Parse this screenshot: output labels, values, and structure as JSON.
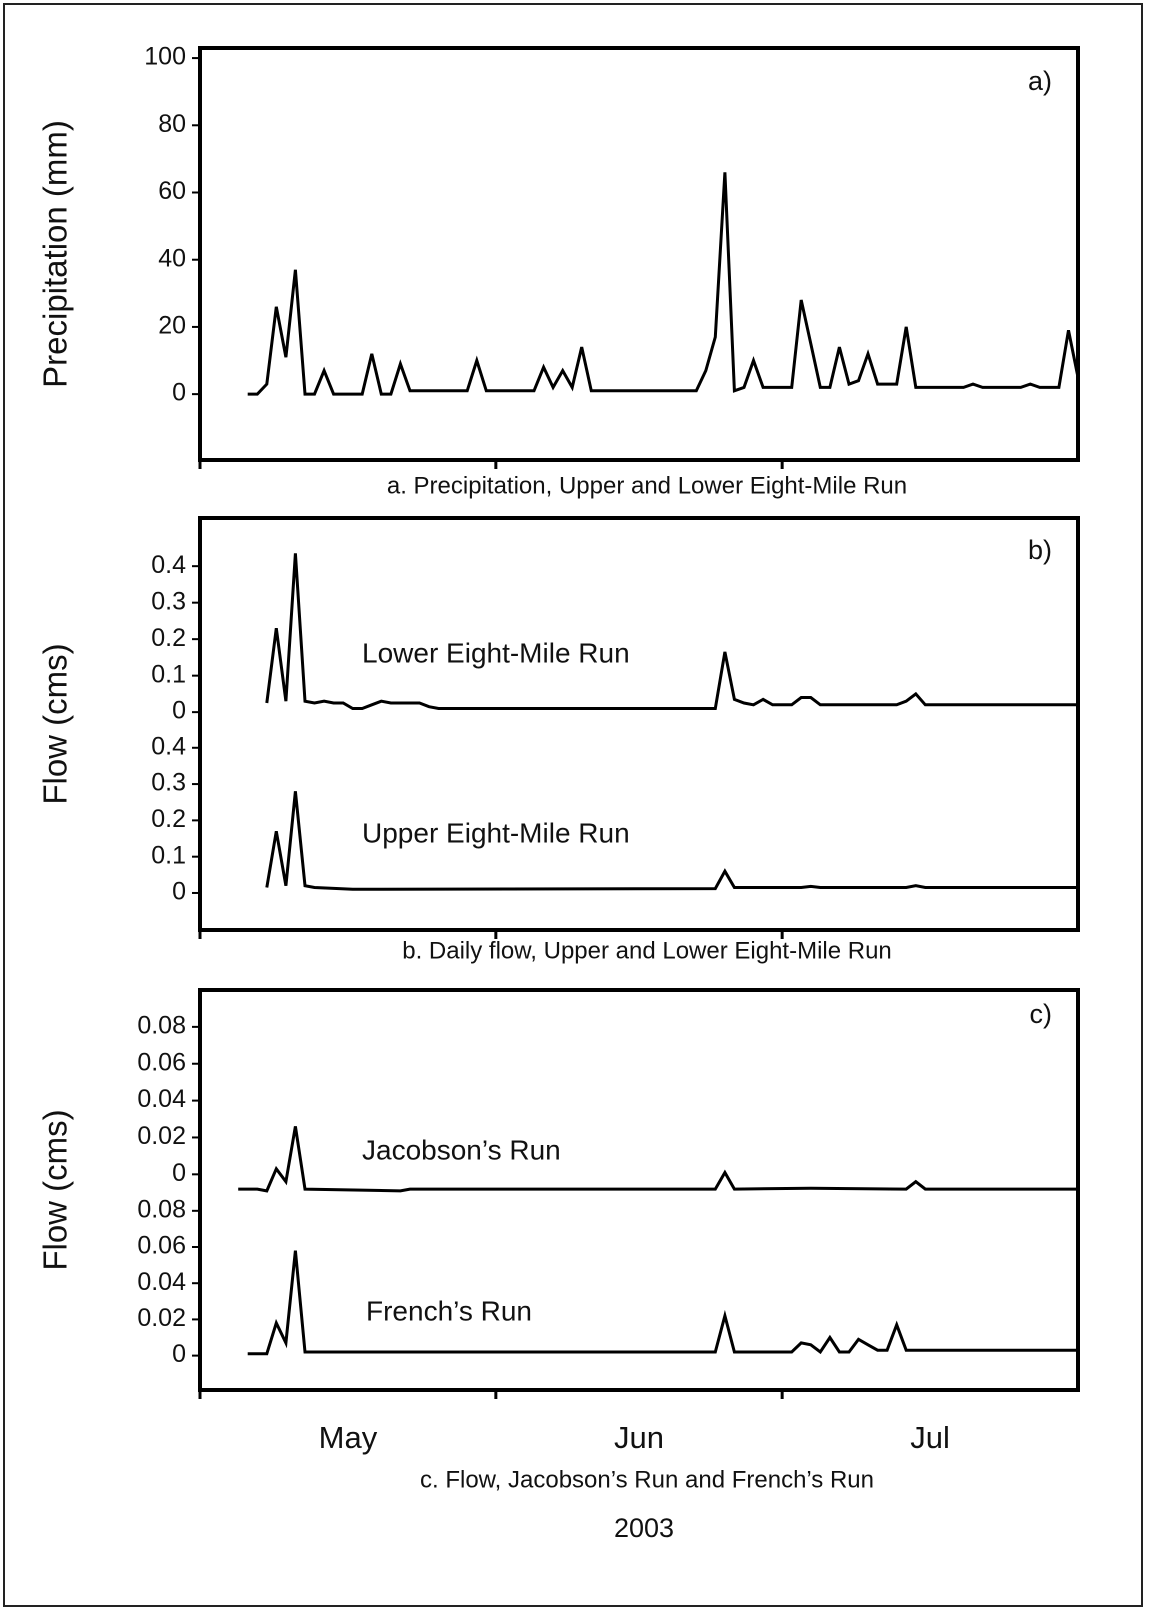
{
  "chart_data": [
    {
      "type": "line",
      "panel_label": "a)",
      "caption": "a.  Precipitation, Upper and Lower Eight-Mile Run",
      "ylabel": "Precipitation (mm)",
      "xlim": [
        0,
        92
      ],
      "xticks": [
        0,
        31,
        61
      ],
      "ylim": [
        -19.6,
        103
      ],
      "yticks": [
        0,
        20,
        40,
        60,
        80,
        100
      ],
      "series": [
        {
          "color": "#000000",
          "x": [
            5,
            6,
            7,
            8,
            9,
            10,
            11,
            12,
            13,
            14,
            17,
            18,
            19,
            20,
            21,
            22,
            28,
            29,
            30,
            35,
            36,
            37,
            38,
            39,
            40,
            41,
            52,
            53,
            54,
            55,
            56,
            57,
            58,
            59,
            62,
            63,
            64,
            65,
            66,
            67,
            68,
            69,
            70,
            71,
            73,
            74,
            75,
            80,
            81,
            82,
            86,
            87,
            88,
            90,
            91,
            92
          ],
          "values": [
            0,
            0,
            3,
            26,
            11,
            37,
            0,
            0,
            7,
            0,
            0,
            12,
            0,
            0,
            9,
            1,
            1,
            10,
            1,
            1,
            8,
            2,
            7,
            2,
            14,
            1,
            1,
            7,
            17,
            66,
            1,
            2,
            10,
            2,
            2,
            28,
            15,
            2,
            2,
            14,
            3,
            4,
            12,
            3,
            3,
            20,
            2,
            2,
            3,
            2,
            2,
            3,
            2,
            2,
            19,
            5
          ]
        }
      ]
    },
    {
      "type": "line",
      "panel_label": "b)",
      "caption": "b.  Daily flow, Upper and Lower Eight-Mile Run",
      "ylabel": "Flow (cms)",
      "xlim": [
        0,
        92
      ],
      "xticks": [
        0,
        31,
        61
      ],
      "series": [
        {
          "name": "Lower Eight-Mile Run",
          "color": "#000000",
          "ylim": [
            -0.597,
            0.532
          ],
          "yticks": [
            0,
            0.1,
            0.2,
            0.3,
            0.4
          ],
          "x": [
            7,
            8,
            9,
            10,
            11,
            12,
            13,
            14,
            15,
            16,
            17,
            18,
            19,
            20,
            23,
            24,
            25,
            54,
            55,
            56,
            57,
            58,
            59,
            60,
            62,
            63,
            64,
            65,
            73,
            74,
            75,
            76,
            92
          ],
          "values": [
            0.025,
            0.23,
            0.03,
            0.435,
            0.03,
            0.025,
            0.03,
            0.025,
            0.025,
            0.01,
            0.01,
            0.02,
            0.03,
            0.025,
            0.025,
            0.015,
            0.01,
            0.01,
            0.165,
            0.035,
            0.025,
            0.02,
            0.035,
            0.02,
            0.02,
            0.04,
            0.04,
            0.02,
            0.02,
            0.03,
            0.05,
            0.02,
            0.02
          ]
        },
        {
          "name": "Upper Eight-Mile Run",
          "color": "#000000",
          "ylim": [
            -0.102,
            1.033
          ],
          "yticks": [
            0,
            0.1,
            0.2,
            0.3,
            0.4
          ],
          "x": [
            7,
            8,
            9,
            10,
            11,
            12,
            16,
            19,
            54,
            55,
            56,
            63,
            64,
            65,
            74,
            75,
            76,
            92
          ],
          "values": [
            0.015,
            0.17,
            0.02,
            0.28,
            0.02,
            0.015,
            0.01,
            0.01,
            0.012,
            0.06,
            0.015,
            0.015,
            0.018,
            0.015,
            0.015,
            0.02,
            0.015,
            0.015
          ]
        }
      ]
    },
    {
      "type": "line",
      "panel_label": "c)",
      "caption": "c.  Flow, Jacobson’s Run and French’s Run",
      "ylabel": "Flow (cms)",
      "xlabel": "2003",
      "xlim": [
        0,
        92
      ],
      "xticks": [
        0,
        31,
        61
      ],
      "month_labels": [
        {
          "value": 15.5,
          "label": "May"
        },
        {
          "value": 46,
          "label": "Jun"
        },
        {
          "value": 76.5,
          "label": "Jul"
        }
      ],
      "series": [
        {
          "name": "Jacobson’s Run",
          "color": "#000000",
          "ylim": [
            -0.117,
            0.1
          ],
          "yticks": [
            0,
            0.02,
            0.04,
            0.06,
            0.08
          ],
          "x": [
            4,
            6,
            7,
            8,
            9,
            10,
            11,
            21,
            22,
            54,
            55,
            56,
            64,
            74,
            75,
            76,
            92
          ],
          "values": [
            -0.008,
            -0.008,
            -0.009,
            0.003,
            -0.004,
            0.026,
            -0.008,
            -0.009,
            -0.008,
            -0.008,
            0.001,
            -0.008,
            -0.0075,
            -0.008,
            -0.004,
            -0.008,
            -0.008
          ]
        },
        {
          "name": "French’s Run",
          "color": "#000000",
          "ylim": [
            -0.019,
            0.202
          ],
          "yticks": [
            0,
            0.02,
            0.04,
            0.06,
            0.08
          ],
          "x": [
            5,
            7,
            8,
            9,
            10,
            11,
            54,
            55,
            56,
            62,
            63,
            64,
            65,
            66,
            67,
            68,
            69,
            70,
            71,
            72,
            73,
            74,
            92
          ],
          "values": [
            0.001,
            0.001,
            0.018,
            0.007,
            0.058,
            0.002,
            0.002,
            0.022,
            0.002,
            0.002,
            0.007,
            0.006,
            0.002,
            0.01,
            0.002,
            0.002,
            0.009,
            0.006,
            0.003,
            0.003,
            0.017,
            0.003,
            0.003
          ]
        }
      ]
    }
  ]
}
